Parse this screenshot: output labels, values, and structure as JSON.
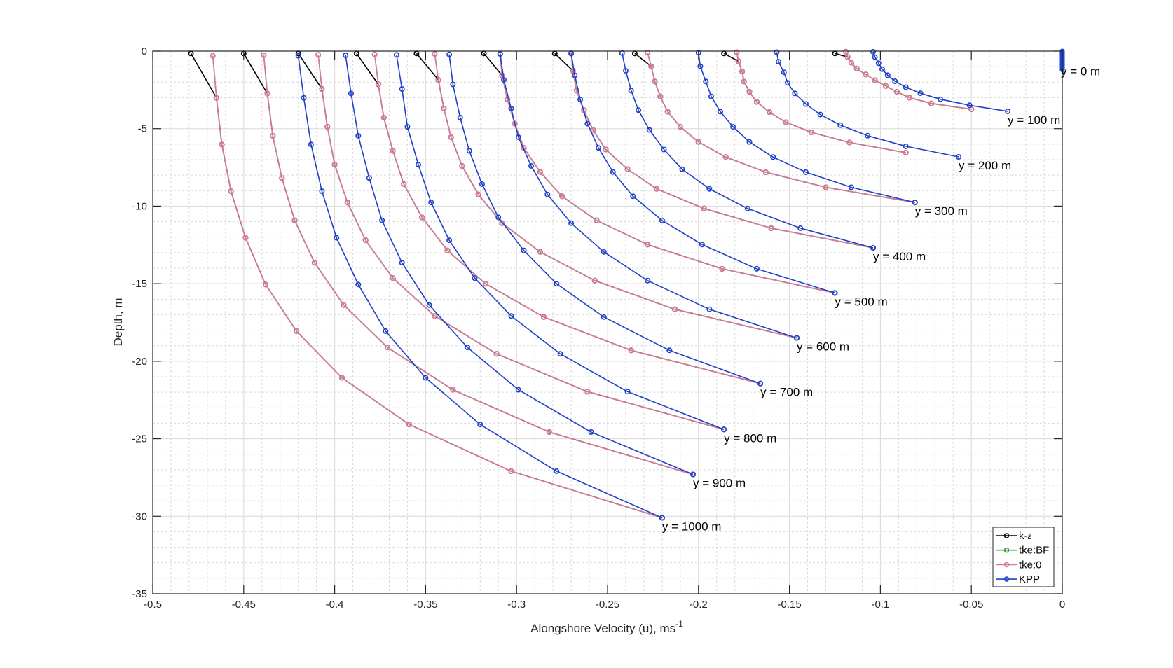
{
  "chart_data": {
    "type": "line",
    "xlabel": "Alongshore Velocity (u), ms",
    "xlabel_superscript": "-1",
    "ylabel": "Depth, m",
    "xlim": [
      -0.5,
      0
    ],
    "ylim": [
      -35,
      0
    ],
    "xticks": [
      -0.5,
      -0.45,
      -0.4,
      -0.35,
      -0.3,
      -0.25,
      -0.2,
      -0.15,
      -0.1,
      -0.05,
      0
    ],
    "xtick_labels": [
      "-0.5",
      "-0.45",
      "-0.4",
      "-0.35",
      "-0.3",
      "-0.25",
      "-0.2",
      "-0.15",
      "-0.1",
      "-0.05",
      "0"
    ],
    "yticks": [
      0,
      -5,
      -10,
      -15,
      -20,
      -25,
      -30,
      -35
    ],
    "ytick_labels": [
      "0",
      "-5",
      "-10",
      "-15",
      "-20",
      "-25",
      "-30",
      "-35"
    ],
    "grid": "major and minor",
    "minor_step": {
      "x": 0.01,
      "y": 1
    },
    "legend": {
      "placement": "bottom-right",
      "entries": [
        {
          "label": "k-",
          "label_symbol": "ε",
          "color": "#000000"
        },
        {
          "label": "tke:BF",
          "color": "#33993a"
        },
        {
          "label": "tke:0",
          "color": "#dd7799"
        },
        {
          "label": "KPP",
          "color": "#1f40c8"
        }
      ]
    },
    "sigma": [
      0.01,
      0.1,
      0.2,
      0.3,
      0.4,
      0.5,
      0.6,
      0.7,
      0.8,
      0.9,
      1.0
    ],
    "k_epsilon_top_depth": -0.15,
    "notes": {
      "tke:BF": "same values as tke:0",
      "k-ε": "top value u_top, below follows tke:0"
    },
    "profiles": [
      {
        "label": "y =  0 m",
        "pink_depth": 1.2,
        "blue_depth": 1.2,
        "k_eps_top": 0,
        "tke0": [
          0,
          0,
          0,
          0,
          0,
          0,
          0,
          0,
          0,
          0,
          0
        ],
        "kpp": [
          0,
          0,
          0,
          0,
          0,
          0,
          0,
          0,
          0,
          0,
          0
        ]
      },
      {
        "label": "y = 100 m",
        "pink_depth": 3.75,
        "blue_depth": 3.88,
        "k_eps_top": -0.125,
        "tke0": [
          -0.119,
          -0.118,
          -0.116,
          -0.113,
          -0.108,
          -0.103,
          -0.097,
          -0.091,
          -0.084,
          -0.072,
          -0.05
        ],
        "kpp": [
          -0.104,
          -0.103,
          -0.101,
          -0.099,
          -0.096,
          -0.092,
          -0.086,
          -0.078,
          -0.067,
          -0.051,
          -0.03
        ]
      },
      {
        "label": "y = 200 m",
        "pink_depth": 6.55,
        "blue_depth": 6.82,
        "k_eps_top": -0.186,
        "tke0": [
          -0.179,
          -0.178,
          -0.176,
          -0.175,
          -0.172,
          -0.168,
          -0.161,
          -0.152,
          -0.138,
          -0.117,
          -0.086
        ],
        "kpp": [
          -0.157,
          -0.156,
          -0.153,
          -0.151,
          -0.147,
          -0.141,
          -0.133,
          -0.122,
          -0.107,
          -0.086,
          -0.057
        ]
      },
      {
        "label": "y = 300 m",
        "pink_depth": 9.76,
        "blue_depth": 9.76,
        "k_eps_top": -0.235,
        "tke0": [
          -0.228,
          -0.226,
          -0.224,
          -0.221,
          -0.217,
          -0.21,
          -0.2,
          -0.185,
          -0.163,
          -0.13,
          -0.081
        ],
        "kpp": [
          -0.2,
          -0.199,
          -0.196,
          -0.193,
          -0.188,
          -0.181,
          -0.172,
          -0.159,
          -0.141,
          -0.116,
          -0.081
        ]
      },
      {
        "label": "y = 400 m",
        "pink_depth": 12.69,
        "blue_depth": 12.69,
        "k_eps_top": -0.279,
        "tke0": [
          -0.27,
          -0.269,
          -0.267,
          -0.263,
          -0.258,
          -0.251,
          -0.239,
          -0.223,
          -0.197,
          -0.16,
          -0.104
        ],
        "kpp": [
          -0.242,
          -0.24,
          -0.237,
          -0.233,
          -0.227,
          -0.219,
          -0.209,
          -0.194,
          -0.173,
          -0.144,
          -0.104
        ]
      },
      {
        "label": "y = 500 m",
        "pink_depth": 15.6,
        "blue_depth": 15.6,
        "k_eps_top": -0.318,
        "tke0": [
          -0.309,
          -0.308,
          -0.305,
          -0.301,
          -0.296,
          -0.287,
          -0.275,
          -0.256,
          -0.228,
          -0.187,
          -0.125
        ],
        "kpp": [
          -0.27,
          -0.268,
          -0.265,
          -0.261,
          -0.255,
          -0.247,
          -0.236,
          -0.22,
          -0.198,
          -0.168,
          -0.125
        ]
      },
      {
        "label": "y = 600 m",
        "pink_depth": 18.5,
        "blue_depth": 18.5,
        "k_eps_top": -0.355,
        "tke0": [
          -0.345,
          -0.343,
          -0.34,
          -0.336,
          -0.33,
          -0.321,
          -0.308,
          -0.287,
          -0.257,
          -0.213,
          -0.146
        ],
        "kpp": [
          -0.309,
          -0.307,
          -0.303,
          -0.299,
          -0.292,
          -0.283,
          -0.27,
          -0.252,
          -0.228,
          -0.194,
          -0.146
        ]
      },
      {
        "label": "y = 700 m",
        "pink_depth": 21.44,
        "blue_depth": 21.44,
        "k_eps_top": -0.388,
        "tke0": [
          -0.378,
          -0.376,
          -0.373,
          -0.368,
          -0.362,
          -0.352,
          -0.338,
          -0.317,
          -0.285,
          -0.237,
          -0.166
        ],
        "kpp": [
          -0.337,
          -0.335,
          -0.331,
          -0.326,
          -0.319,
          -0.31,
          -0.296,
          -0.278,
          -0.252,
          -0.216,
          -0.166
        ]
      },
      {
        "label": "y = 800 m",
        "pink_depth": 24.4,
        "blue_depth": 24.4,
        "k_eps_top": -0.42,
        "tke0": [
          -0.409,
          -0.407,
          -0.404,
          -0.4,
          -0.393,
          -0.383,
          -0.368,
          -0.345,
          -0.311,
          -0.261,
          -0.186
        ],
        "kpp": [
          -0.366,
          -0.363,
          -0.36,
          -0.354,
          -0.347,
          -0.337,
          -0.323,
          -0.303,
          -0.276,
          -0.239,
          -0.186
        ]
      },
      {
        "label": "y = 900 m",
        "pink_depth": 27.3,
        "blue_depth": 27.3,
        "k_eps_top": -0.45,
        "tke0": [
          -0.439,
          -0.437,
          -0.434,
          -0.429,
          -0.422,
          -0.411,
          -0.395,
          -0.371,
          -0.335,
          -0.282,
          -0.203
        ],
        "kpp": [
          -0.394,
          -0.391,
          -0.387,
          -0.381,
          -0.374,
          -0.363,
          -0.348,
          -0.327,
          -0.299,
          -0.259,
          -0.203
        ]
      },
      {
        "label": "y = 1000 m",
        "pink_depth": 30.1,
        "blue_depth": 30.1,
        "k_eps_top": -0.479,
        "tke0": [
          -0.467,
          -0.465,
          -0.462,
          -0.457,
          -0.449,
          -0.438,
          -0.421,
          -0.396,
          -0.359,
          -0.303,
          -0.22
        ],
        "kpp": [
          -0.42,
          -0.417,
          -0.413,
          -0.407,
          -0.399,
          -0.387,
          -0.372,
          -0.35,
          -0.32,
          -0.278,
          -0.22
        ]
      }
    ]
  }
}
